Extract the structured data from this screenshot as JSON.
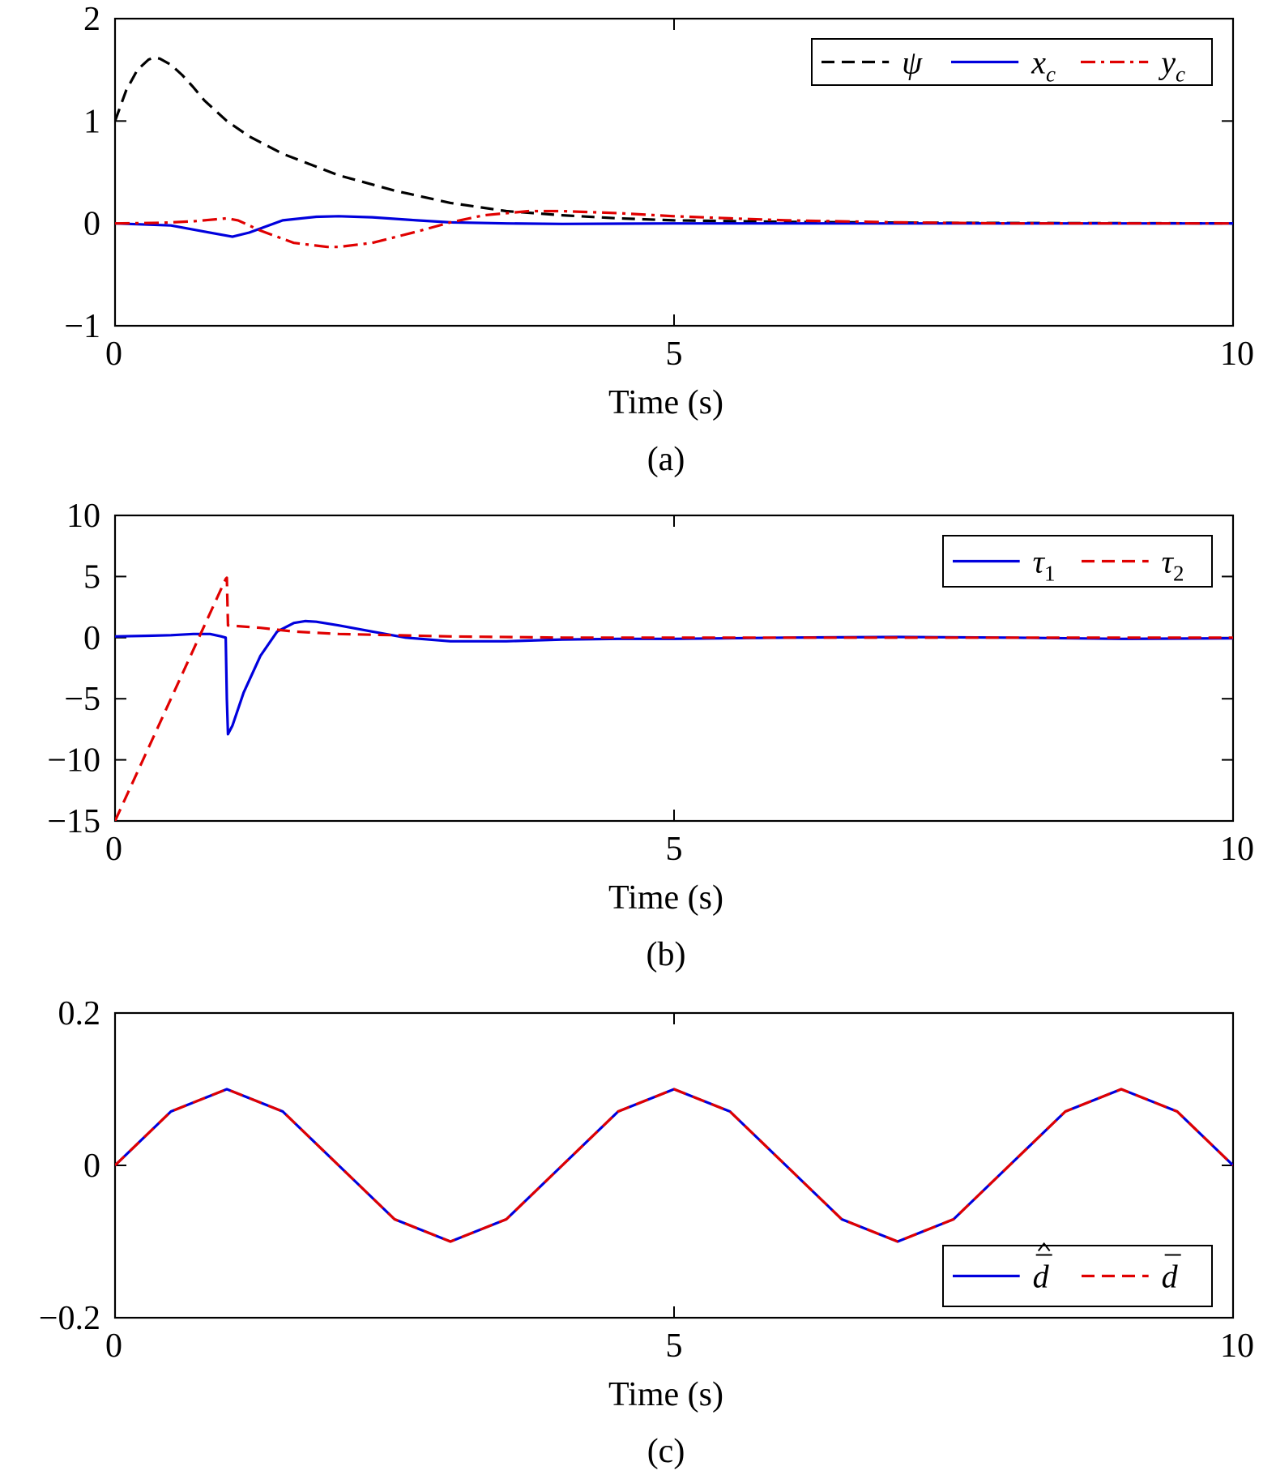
{
  "chart_data": [
    {
      "type": "line",
      "caption": "(a)",
      "xlabel": "Time (s)",
      "ylabel": "",
      "xlim": [
        0,
        10
      ],
      "ylim": [
        -1,
        2
      ],
      "xticks": [
        0,
        5,
        10
      ],
      "xtick_labels": [
        "0",
        "5",
        "10"
      ],
      "yticks": [
        -1,
        0,
        1,
        2
      ],
      "ytick_labels": [
        "−1",
        "0",
        "1",
        "2"
      ],
      "grid": false,
      "legend_position": "top-right",
      "series": [
        {
          "name": "ψ",
          "label_main": "ψ",
          "label_sub": "",
          "color": "#000000",
          "dash": "dashed",
          "x": [
            0,
            0.1,
            0.2,
            0.3,
            0.35,
            0.4,
            0.5,
            0.6,
            0.7,
            0.8,
            1.0,
            1.2,
            1.5,
            2.0,
            2.5,
            3.0,
            3.5,
            4.0,
            4.5,
            5.0,
            6.0,
            7.0,
            8.0,
            9.0,
            10.0
          ],
          "y": [
            1.0,
            1.3,
            1.5,
            1.6,
            1.62,
            1.61,
            1.55,
            1.45,
            1.33,
            1.2,
            1.0,
            0.85,
            0.68,
            0.47,
            0.32,
            0.2,
            0.12,
            0.08,
            0.05,
            0.03,
            0.015,
            0.008,
            0.004,
            0.002,
            0.0
          ]
        },
        {
          "name": "x_c",
          "label_main": "x",
          "label_sub": "c",
          "color": "#0000dd",
          "dash": "solid",
          "x": [
            0,
            0.5,
            0.8,
            1.0,
            1.05,
            1.2,
            1.5,
            1.8,
            2.0,
            2.3,
            2.7,
            3.0,
            3.5,
            4.0,
            5.0,
            6.0,
            8.0,
            10.0
          ],
          "y": [
            0.0,
            -0.02,
            -0.08,
            -0.12,
            -0.13,
            -0.09,
            0.03,
            0.065,
            0.07,
            0.06,
            0.03,
            0.01,
            0.0,
            -0.005,
            0.0,
            0.0,
            0.0,
            0.0
          ]
        },
        {
          "name": "y_c",
          "label_main": "y",
          "label_sub": "c",
          "color": "#e00000",
          "dash": "dashdot",
          "x": [
            0,
            0.4,
            0.7,
            0.9,
            1.0,
            1.1,
            1.3,
            1.6,
            1.9,
            2.0,
            2.3,
            2.7,
            3.0,
            3.3,
            3.7,
            4.0,
            4.5,
            5.0,
            5.5,
            6.0,
            7.0,
            8.0,
            10.0
          ],
          "y": [
            0.0,
            0.005,
            0.02,
            0.04,
            0.05,
            0.03,
            -0.07,
            -0.19,
            -0.23,
            -0.23,
            -0.19,
            -0.08,
            0.01,
            0.08,
            0.12,
            0.12,
            0.1,
            0.07,
            0.05,
            0.03,
            0.01,
            0.0,
            0.0
          ]
        }
      ]
    },
    {
      "type": "line",
      "caption": "(b)",
      "xlabel": "Time (s)",
      "ylabel": "",
      "xlim": [
        0,
        10
      ],
      "ylim": [
        -15,
        10
      ],
      "xticks": [
        0,
        5,
        10
      ],
      "xtick_labels": [
        "0",
        "5",
        "10"
      ],
      "yticks": [
        -15,
        -10,
        -5,
        0,
        5,
        10
      ],
      "ytick_labels": [
        "−15",
        "−10",
        "−5",
        "0",
        "5",
        "10"
      ],
      "grid": false,
      "legend_position": "top-right",
      "series": [
        {
          "name": "τ_1",
          "label_main": "τ",
          "label_sub": "1",
          "color": "#0000dd",
          "dash": "solid",
          "x": [
            0,
            0.3,
            0.5,
            0.7,
            0.85,
            0.95,
            0.99,
            1.0,
            1.01,
            1.05,
            1.15,
            1.3,
            1.45,
            1.6,
            1.7,
            1.8,
            2.0,
            2.3,
            2.6,
            3.0,
            3.5,
            4.0,
            4.5,
            5.0,
            6.0,
            7.0,
            8.0,
            9.0,
            10.0
          ],
          "y": [
            0.1,
            0.15,
            0.2,
            0.3,
            0.3,
            0.1,
            0.0,
            -5.0,
            -7.9,
            -7.2,
            -4.5,
            -1.5,
            0.5,
            1.2,
            1.35,
            1.3,
            1.0,
            0.5,
            0.0,
            -0.3,
            -0.3,
            -0.15,
            -0.1,
            -0.1,
            0.0,
            0.05,
            0.0,
            -0.1,
            -0.05
          ]
        },
        {
          "name": "τ_2",
          "label_main": "τ",
          "label_sub": "2",
          "color": "#e00000",
          "dash": "dashed",
          "x": [
            0,
            0.5,
            0.8,
            0.99,
            1.0,
            1.01,
            1.3,
            1.6,
            2.0,
            2.5,
            3.0,
            4.0,
            5.0,
            6.0,
            7.0,
            8.0,
            9.0,
            10.0
          ],
          "y": [
            -15.0,
            -5.0,
            1.0,
            4.8,
            4.9,
            1.0,
            0.8,
            0.5,
            0.3,
            0.2,
            0.1,
            0.0,
            0.0,
            0.0,
            0.0,
            0.0,
            0.0,
            0.0
          ]
        }
      ]
    },
    {
      "type": "line",
      "caption": "(c)",
      "xlabel": "Time (s)",
      "ylabel": "",
      "xlim": [
        0,
        10
      ],
      "ylim": [
        -0.2,
        0.2
      ],
      "xticks": [
        0,
        5,
        10
      ],
      "xtick_labels": [
        "0",
        "5",
        "10"
      ],
      "yticks": [
        -0.2,
        0,
        0.2
      ],
      "ytick_labels": [
        "−0.2",
        "0",
        "0.2"
      ],
      "grid": false,
      "legend_position": "bottom-right",
      "series": [
        {
          "name": "d-hat-bar",
          "label_main": "d",
          "label_sub": "",
          "label_marks": "hat-bar",
          "color": "#0000dd",
          "dash": "solid",
          "x": [
            0,
            0.5,
            1.0,
            1.5,
            2.0,
            2.5,
            3.0,
            3.5,
            4.0,
            4.5,
            5.0,
            5.5,
            6.0,
            6.5,
            7.0,
            7.5,
            8.0,
            8.5,
            9.0,
            9.5,
            10.0
          ],
          "y": [
            0.0,
            0.0707,
            0.1,
            0.0707,
            0.0,
            -0.0707,
            -0.1,
            -0.0707,
            0.0,
            0.0707,
            0.1,
            0.0707,
            0.0,
            -0.0707,
            -0.1,
            -0.0707,
            0.0,
            0.0707,
            0.1,
            0.0707,
            0.0
          ]
        },
        {
          "name": "d-bar",
          "label_main": "d",
          "label_sub": "",
          "label_marks": "bar",
          "color": "#e00000",
          "dash": "dashed",
          "x": [
            0,
            0.5,
            1.0,
            1.5,
            2.0,
            2.5,
            3.0,
            3.5,
            4.0,
            4.5,
            5.0,
            5.5,
            6.0,
            6.5,
            7.0,
            7.5,
            8.0,
            8.5,
            9.0,
            9.5,
            10.0
          ],
          "y": [
            0.0,
            0.0707,
            0.1,
            0.0707,
            0.0,
            -0.0707,
            -0.1,
            -0.0707,
            0.0,
            0.0707,
            0.1,
            0.0707,
            0.0,
            -0.0707,
            -0.1,
            -0.0707,
            0.0,
            0.0707,
            0.1,
            0.0707,
            0.0
          ]
        }
      ]
    }
  ]
}
